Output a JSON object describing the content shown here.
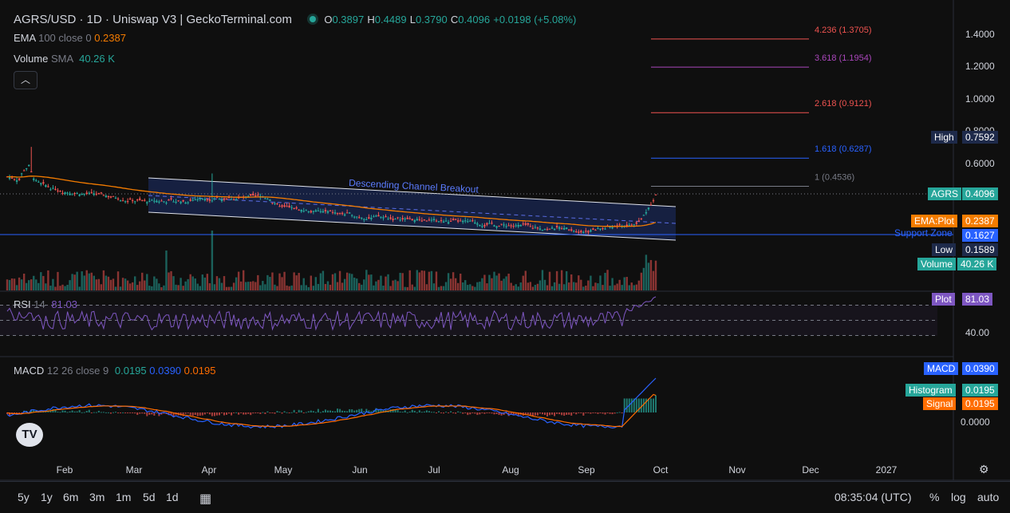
{
  "header": {
    "symbol": "AGRS/USD · 1D · Uniswap V3 | GeckoTerminal.com",
    "o_label": "O",
    "o": "0.3897",
    "h_label": "H",
    "h": "0.4489",
    "l_label": "L",
    "l": "0.3790",
    "c_label": "C",
    "c": "0.4096",
    "change": "+0.0198 (+5.08%)"
  },
  "indicators": {
    "ema": {
      "label": "EMA",
      "params": "100 close 0",
      "value": "0.2387"
    },
    "volume": {
      "label": "Volume",
      "params": "SMA",
      "value": "40.26 K"
    },
    "rsi": {
      "label": "RSI",
      "params": "14",
      "value": "81.03"
    },
    "macd": {
      "label": "MACD",
      "params": "12 26 close 9",
      "hist": "0.0195",
      "macd": "0.0390",
      "signal": "0.0195"
    }
  },
  "collapse_icon": "chevron-up-icon",
  "price_axis_ticks": [
    "1.4000",
    "1.2000",
    "1.0000",
    "0.8000",
    "0.6000"
  ],
  "rsi_axis_tick": "40.00",
  "macd_axis_tick": "0.0000",
  "badges": {
    "high": {
      "label": "High",
      "value": "0.7592"
    },
    "agrs": {
      "label": "AGRS",
      "value": "0.4096"
    },
    "ema": {
      "label": "EMA:Plot",
      "value": "0.2387"
    },
    "support": {
      "value": "0.1627"
    },
    "low": {
      "label": "Low",
      "value": "0.1589"
    },
    "volume": {
      "label": "Volume",
      "value": "40.26 K"
    },
    "rsi_plot": {
      "label": "Plot",
      "value": "81.03"
    },
    "macd": {
      "label": "MACD",
      "value": "0.0390"
    },
    "histogram": {
      "label": "Histogram",
      "value": "0.0195"
    },
    "signal": {
      "label": "Signal",
      "value": "0.0195"
    }
  },
  "colors": {
    "up": "#26a69a",
    "down": "#ef5350",
    "ema": "#f57c00",
    "rsi": "#7e57c2",
    "macd": "#2962ff",
    "signal": "#ff6d00",
    "support": "#2962ff"
  },
  "chart_data": {
    "type": "candlestick",
    "title": "AGRS/USD · 1D · Uniswap V3 | GeckoTerminal.com",
    "x_ticks": [
      "Feb",
      "Mar",
      "Apr",
      "May",
      "Jun",
      "Jul",
      "Aug",
      "Sep",
      "Oct",
      "Nov",
      "Dec",
      "2027"
    ],
    "fib_levels": [
      {
        "label": "4.236 (1.3705)",
        "value": 1.3705,
        "color": "#ef5350"
      },
      {
        "label": "3.618 (1.1954)",
        "value": 1.1954,
        "color": "#ab47bc"
      },
      {
        "label": "2.618 (0.9121)",
        "value": 0.9121,
        "color": "#ef5350"
      },
      {
        "label": "1.618 (0.6287)",
        "value": 0.6287,
        "color": "#2962ff"
      },
      {
        "label": "1 (0.4536)",
        "value": 0.4536,
        "color": "#787b86"
      }
    ],
    "annotations": {
      "channel": "Descending Channel Breakout",
      "support": "Support Zone"
    },
    "support_level": 0.1627,
    "high": 0.7592,
    "low": 0.1589,
    "last_close": 0.4096,
    "ema_last": 0.2387,
    "rsi_last": 81.03,
    "macd_last": 0.039,
    "signal_last": 0.0195,
    "hist_last": 0.0195,
    "volume_last": "40.26 K"
  },
  "timeframes": [
    "5y",
    "1y",
    "6m",
    "3m",
    "1m",
    "5d",
    "1d"
  ],
  "clock": "08:35:04 (UTC)",
  "scale_buttons": [
    "%",
    "log",
    "auto"
  ]
}
